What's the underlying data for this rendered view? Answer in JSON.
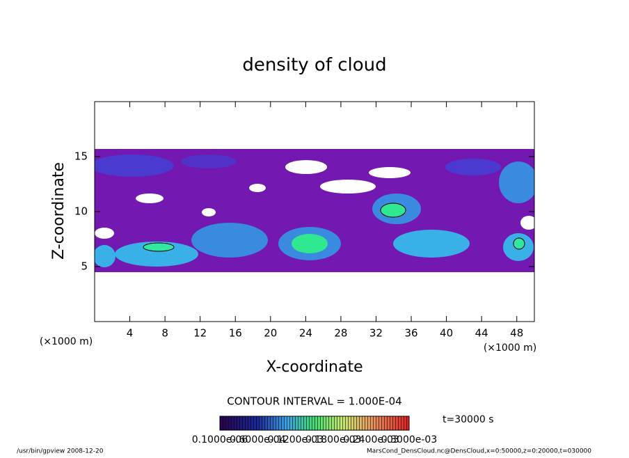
{
  "chart_data": {
    "type": "contour",
    "title": "density of cloud",
    "x_label": "X-coordinate",
    "y_label": "Z-coordinate",
    "x_unit": "(×1000 m)",
    "y_unit": "(×1000 m)",
    "xlim": [
      0,
      50
    ],
    "ylim": [
      0,
      20
    ],
    "xticks": [
      4,
      8,
      12,
      16,
      20,
      24,
      28,
      32,
      36,
      40,
      44,
      48
    ],
    "yticks": [
      5,
      10,
      15
    ],
    "contour_interval": "CONTOUR INTERVAL = 1.000E-04",
    "time": "t=30000 s",
    "colorbar_labels": [
      "0.1000e-06",
      "0.6000e-04",
      "0.1200e-03",
      "0.1800e-03",
      "0.2400e-03",
      "0.3000e-03"
    ],
    "footer_left": "/usr/bin/gpview  2008-12-20",
    "footer_right": "MarsCond_DensCloud.nc@DensCloud,x=0:50000,z=0:20000,t=030000"
  }
}
